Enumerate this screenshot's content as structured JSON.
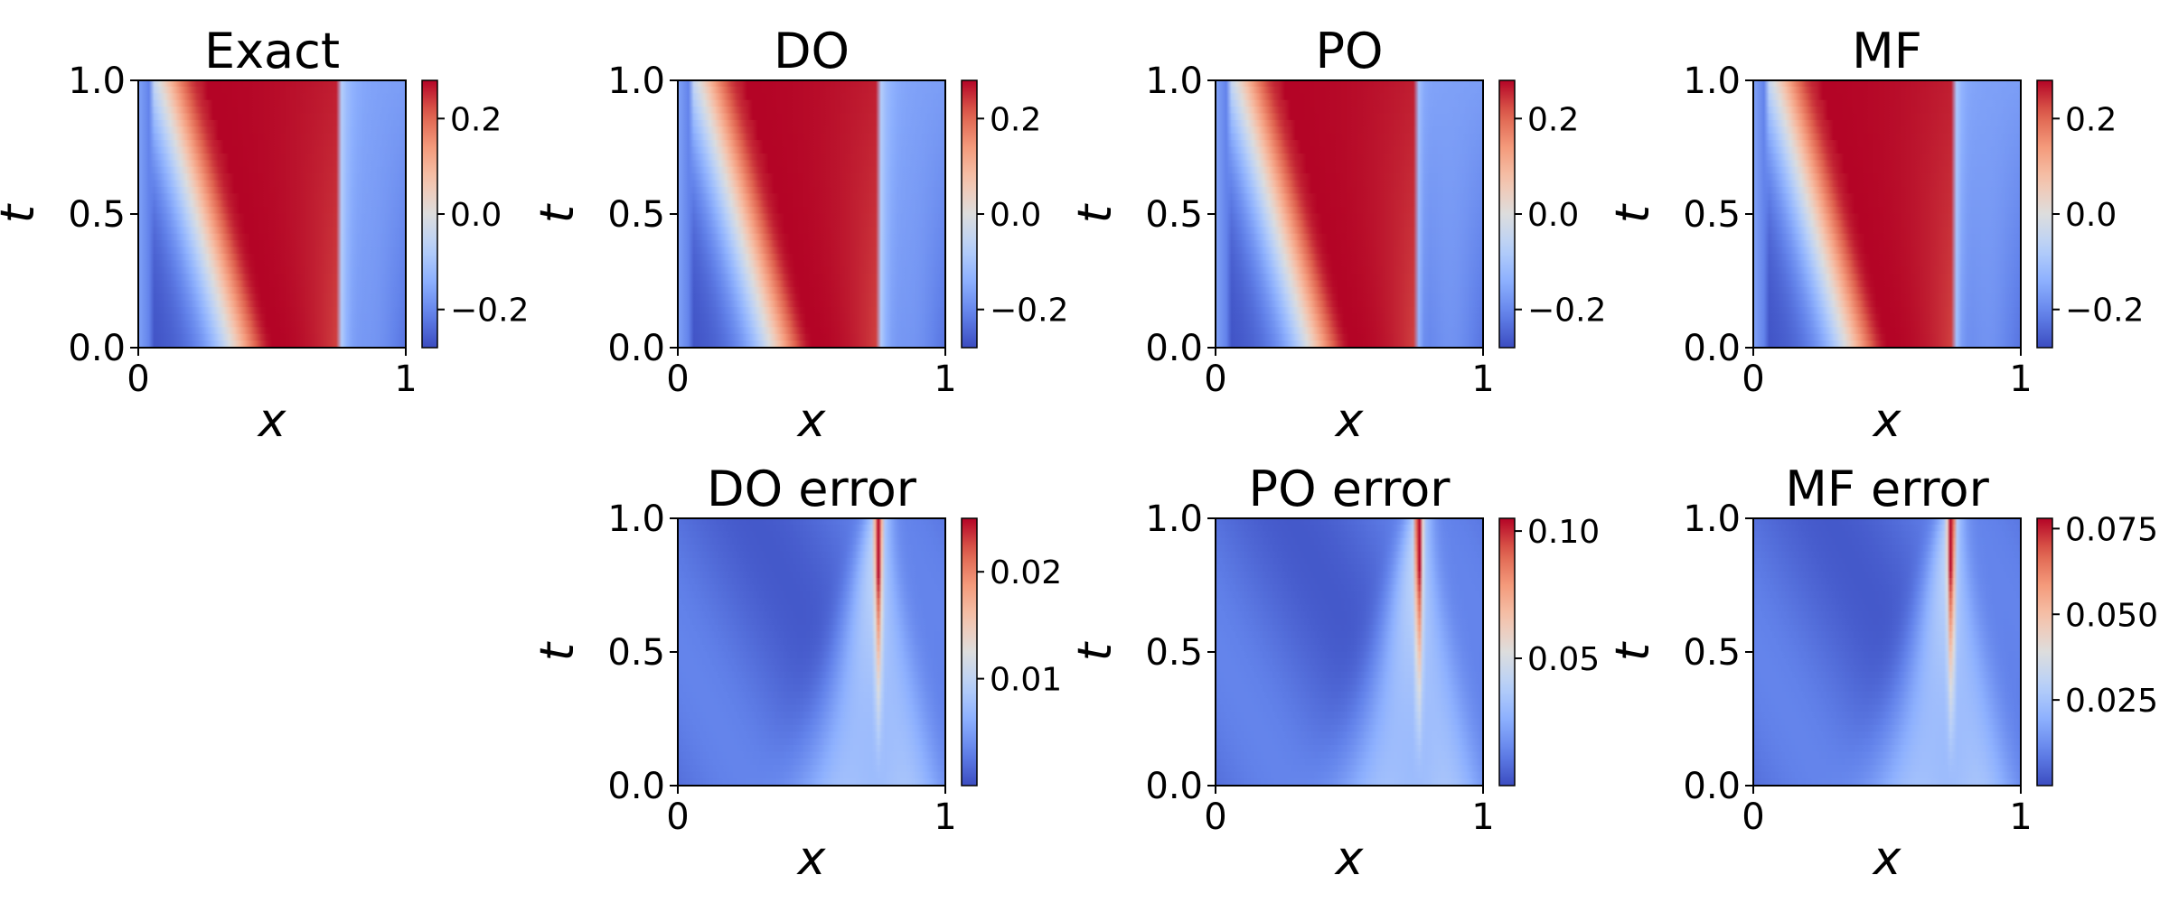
{
  "chart_data": [
    {
      "type": "heatmap",
      "title": "Exact",
      "xlabel": "x",
      "ylabel": "t",
      "xlim": [
        0,
        1
      ],
      "ylim": [
        0,
        1
      ],
      "xticks": [
        "0",
        "1"
      ],
      "yticks": [
        "0.0",
        "0.5",
        "1.0"
      ],
      "colormap": "coolwarm",
      "colorbar": {
        "range": [
          -0.28,
          0.28
        ],
        "ticks": [
          0.2,
          0.0,
          -0.2
        ],
        "tick_labels": [
          "0.2",
          "0.0",
          "−0.2"
        ]
      },
      "field": "solution"
    },
    {
      "type": "heatmap",
      "title": "DO",
      "xlabel": "x",
      "ylabel": "t",
      "xlim": [
        0,
        1
      ],
      "ylim": [
        0,
        1
      ],
      "xticks": [
        "0",
        "1"
      ],
      "yticks": [
        "0.0",
        "0.5",
        "1.0"
      ],
      "colormap": "coolwarm",
      "colorbar": {
        "range": [
          -0.28,
          0.28
        ],
        "ticks": [
          0.2,
          0.0,
          -0.2
        ],
        "tick_labels": [
          "0.2",
          "0.0",
          "−0.2"
        ]
      },
      "field": "solution"
    },
    {
      "type": "heatmap",
      "title": "PO",
      "xlabel": "x",
      "ylabel": "t",
      "xlim": [
        0,
        1
      ],
      "ylim": [
        0,
        1
      ],
      "xticks": [
        "0",
        "1"
      ],
      "yticks": [
        "0.0",
        "0.5",
        "1.0"
      ],
      "colormap": "coolwarm",
      "colorbar": {
        "range": [
          -0.28,
          0.28
        ],
        "ticks": [
          0.2,
          0.0,
          -0.2
        ],
        "tick_labels": [
          "0.2",
          "0.0",
          "−0.2"
        ]
      },
      "field": "solution"
    },
    {
      "type": "heatmap",
      "title": "MF",
      "xlabel": "x",
      "ylabel": "t",
      "xlim": [
        0,
        1
      ],
      "ylim": [
        0,
        1
      ],
      "xticks": [
        "0",
        "1"
      ],
      "yticks": [
        "0.0",
        "0.5",
        "1.0"
      ],
      "colormap": "coolwarm",
      "colorbar": {
        "range": [
          -0.28,
          0.28
        ],
        "ticks": [
          0.2,
          0.0,
          -0.2
        ],
        "tick_labels": [
          "0.2",
          "0.0",
          "−0.2"
        ]
      },
      "field": "solution"
    },
    {
      "type": "heatmap",
      "title": "DO error",
      "xlabel": "x",
      "ylabel": "t",
      "xlim": [
        0,
        1
      ],
      "ylim": [
        0,
        1
      ],
      "xticks": [
        "0",
        "1"
      ],
      "yticks": [
        "0.0",
        "0.5",
        "1.0"
      ],
      "colormap": "coolwarm",
      "colorbar": {
        "range": [
          0.0,
          0.025
        ],
        "ticks": [
          0.02,
          0.01
        ],
        "tick_labels": [
          "0.02",
          "0.01"
        ]
      },
      "field": "error",
      "error_peak_x": 0.75
    },
    {
      "type": "heatmap",
      "title": "PO error",
      "xlabel": "x",
      "ylabel": "t",
      "xlim": [
        0,
        1
      ],
      "ylim": [
        0,
        1
      ],
      "xticks": [
        "0",
        "1"
      ],
      "yticks": [
        "0.0",
        "0.5",
        "1.0"
      ],
      "colormap": "coolwarm",
      "colorbar": {
        "range": [
          0.0,
          0.105
        ],
        "ticks": [
          0.1,
          0.05
        ],
        "tick_labels": [
          "0.10",
          "0.05"
        ]
      },
      "field": "error",
      "error_peak_x": 0.76
    },
    {
      "type": "heatmap",
      "title": "MF error",
      "xlabel": "x",
      "ylabel": "t",
      "xlim": [
        0,
        1
      ],
      "ylim": [
        0,
        1
      ],
      "xticks": [
        "0",
        "1"
      ],
      "yticks": [
        "0.0",
        "0.5",
        "1.0"
      ],
      "colormap": "coolwarm",
      "colorbar": {
        "range": [
          0.0,
          0.078
        ],
        "ticks": [
          0.075,
          0.05,
          0.025
        ],
        "tick_labels": [
          "0.075",
          "0.050",
          "0.025"
        ]
      },
      "field": "error",
      "error_peak_x": 0.74
    }
  ]
}
